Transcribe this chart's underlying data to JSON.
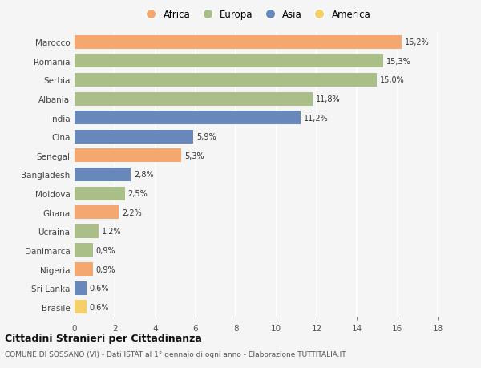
{
  "countries": [
    "Marocco",
    "Romania",
    "Serbia",
    "Albania",
    "India",
    "Cina",
    "Senegal",
    "Bangladesh",
    "Moldova",
    "Ghana",
    "Ucraina",
    "Danimarca",
    "Nigeria",
    "Sri Lanka",
    "Brasile"
  ],
  "values": [
    16.2,
    15.3,
    15.0,
    11.8,
    11.2,
    5.9,
    5.3,
    2.8,
    2.5,
    2.2,
    1.2,
    0.9,
    0.9,
    0.6,
    0.6
  ],
  "labels": [
    "16,2%",
    "15,3%",
    "15,0%",
    "11,8%",
    "11,2%",
    "5,9%",
    "5,3%",
    "2,8%",
    "2,5%",
    "2,2%",
    "1,2%",
    "0,9%",
    "0,9%",
    "0,6%",
    "0,6%"
  ],
  "continents": [
    "Africa",
    "Europa",
    "Europa",
    "Europa",
    "Asia",
    "Asia",
    "Africa",
    "Asia",
    "Europa",
    "Africa",
    "Europa",
    "Europa",
    "Africa",
    "Asia",
    "America"
  ],
  "colors": {
    "Africa": "#F4A870",
    "Europa": "#AABF88",
    "Asia": "#6888BC",
    "America": "#F5CF6A"
  },
  "legend_order": [
    "Africa",
    "Europa",
    "Asia",
    "America"
  ],
  "xlim": [
    0,
    18
  ],
  "xticks": [
    0,
    2,
    4,
    6,
    8,
    10,
    12,
    14,
    16,
    18
  ],
  "title": "Cittadini Stranieri per Cittadinanza",
  "subtitle": "COMUNE DI SOSSANO (VI) - Dati ISTAT al 1° gennaio di ogni anno - Elaborazione TUTTITALIA.IT",
  "background_color": "#f5f5f5",
  "grid_color": "#ffffff",
  "bar_height": 0.72
}
